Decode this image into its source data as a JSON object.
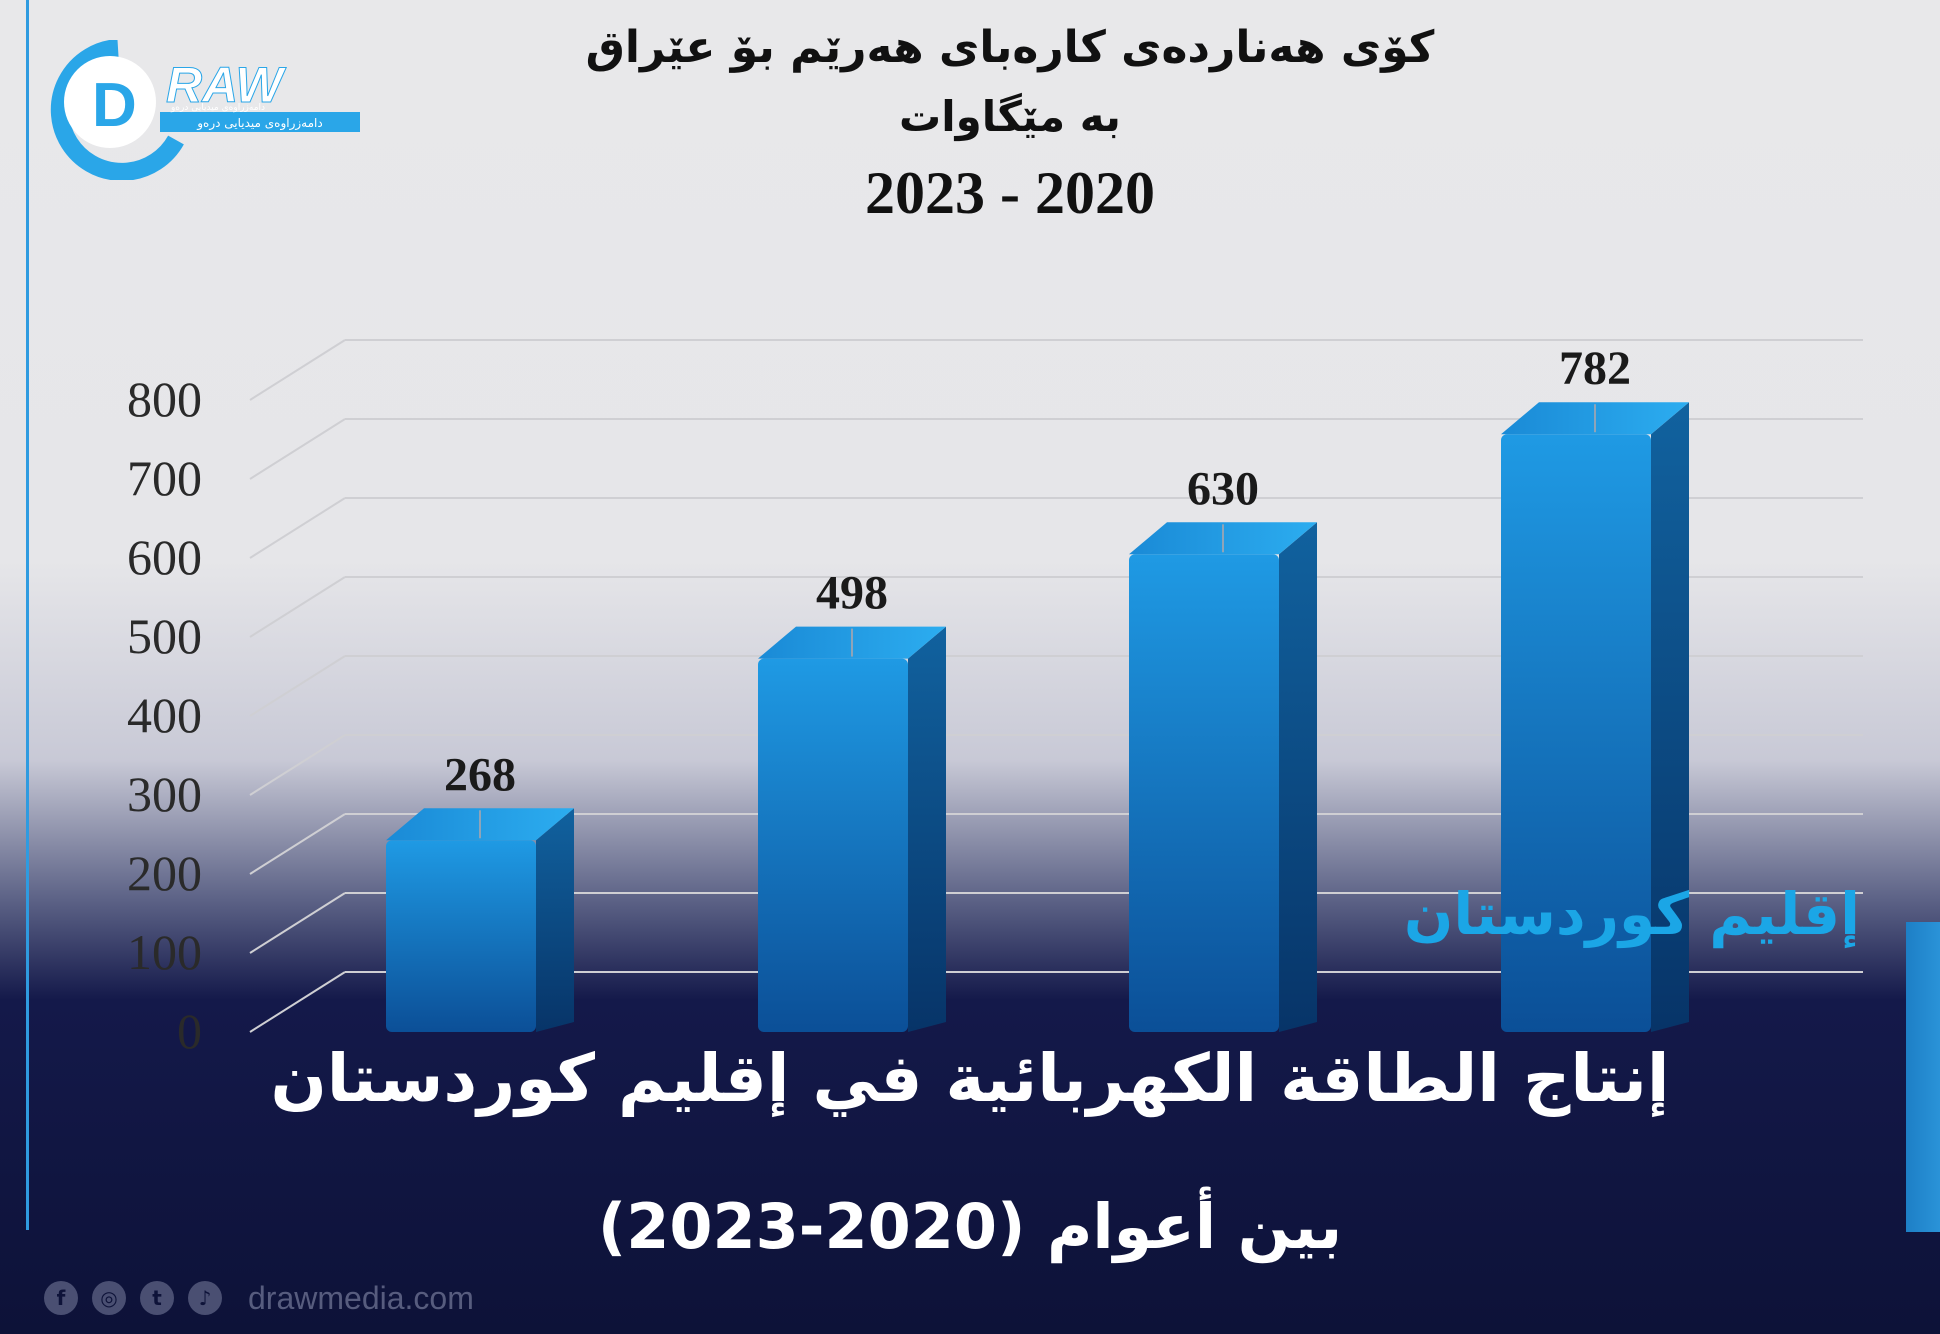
{
  "brand": {
    "logo_text": "RAW",
    "logo_letter": "D",
    "logo_tagline_top": "دامەزراوەی میدیایی درەو",
    "logo_tagline_bottom": "دامەزراوەی میدیایی درەو",
    "website": "drawmedia.com",
    "social_icons": [
      "facebook-icon",
      "instagram-icon",
      "twitter-icon",
      "tiktok-icon"
    ]
  },
  "header": {
    "title_line1": "کۆی هەناردەی کارەبای هەرێم بۆ عێراق",
    "title_line2": "بە مێگاوات",
    "title_line3": "2023 - 2020"
  },
  "overlay": {
    "region_label": "إقليم كوردستان",
    "headline_line1": "إنتاج الطاقة الكهربائية في إقليم كوردستان",
    "headline_line2": "بين أعوام (2020-2023)"
  },
  "colors": {
    "bar": "#1a8ad6",
    "bar_dark": "#0d5ea6",
    "accent": "#1ba6e6",
    "navy": "#0f1440"
  },
  "chart_data": {
    "type": "bar",
    "title": "کۆی هەناردەی کارەبای هەرێم بۆ عێراق بە مێگاوات 2023 - 2020",
    "values": [
      268,
      498,
      630,
      782
    ],
    "data_labels": [
      "268",
      "498",
      "630",
      "782"
    ],
    "ylim": [
      0,
      800
    ],
    "yticks": [
      0,
      100,
      200,
      300,
      400,
      500,
      600,
      700,
      800
    ],
    "grid": true,
    "style": "3d"
  }
}
